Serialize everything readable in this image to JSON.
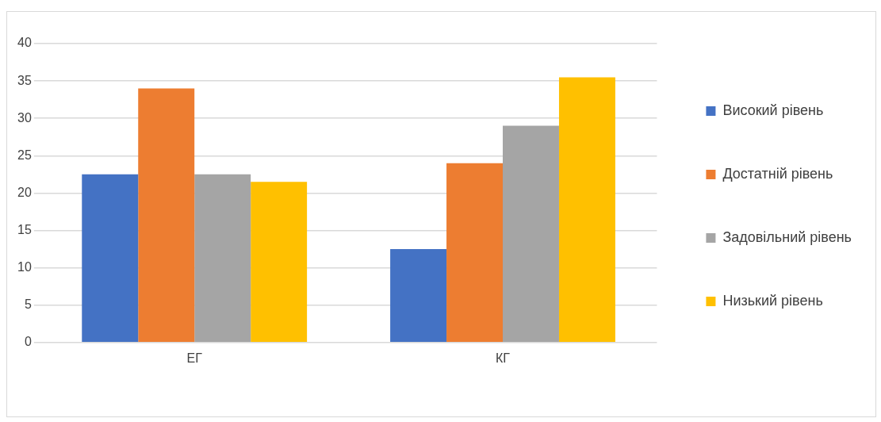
{
  "chart_data": {
    "type": "bar",
    "categories": [
      "ЕГ",
      "КГ"
    ],
    "series": [
      {
        "name": "Високий рівень",
        "color": "#4472c4",
        "values": [
          22.5,
          12.5
        ]
      },
      {
        "name": "Достатній рівень",
        "color": "#ed7d31",
        "values": [
          34,
          24
        ]
      },
      {
        "name": "Задовільний рівень",
        "color": "#a5a5a5",
        "values": [
          22.5,
          29
        ]
      },
      {
        "name": "Низький рівень",
        "color": "#ffc000",
        "values": [
          21.5,
          35.5
        ]
      }
    ],
    "ylim": [
      0,
      40
    ],
    "yticks": [
      0,
      5,
      10,
      15,
      20,
      25,
      30,
      35,
      40
    ],
    "grid": "y",
    "legend": "right"
  }
}
